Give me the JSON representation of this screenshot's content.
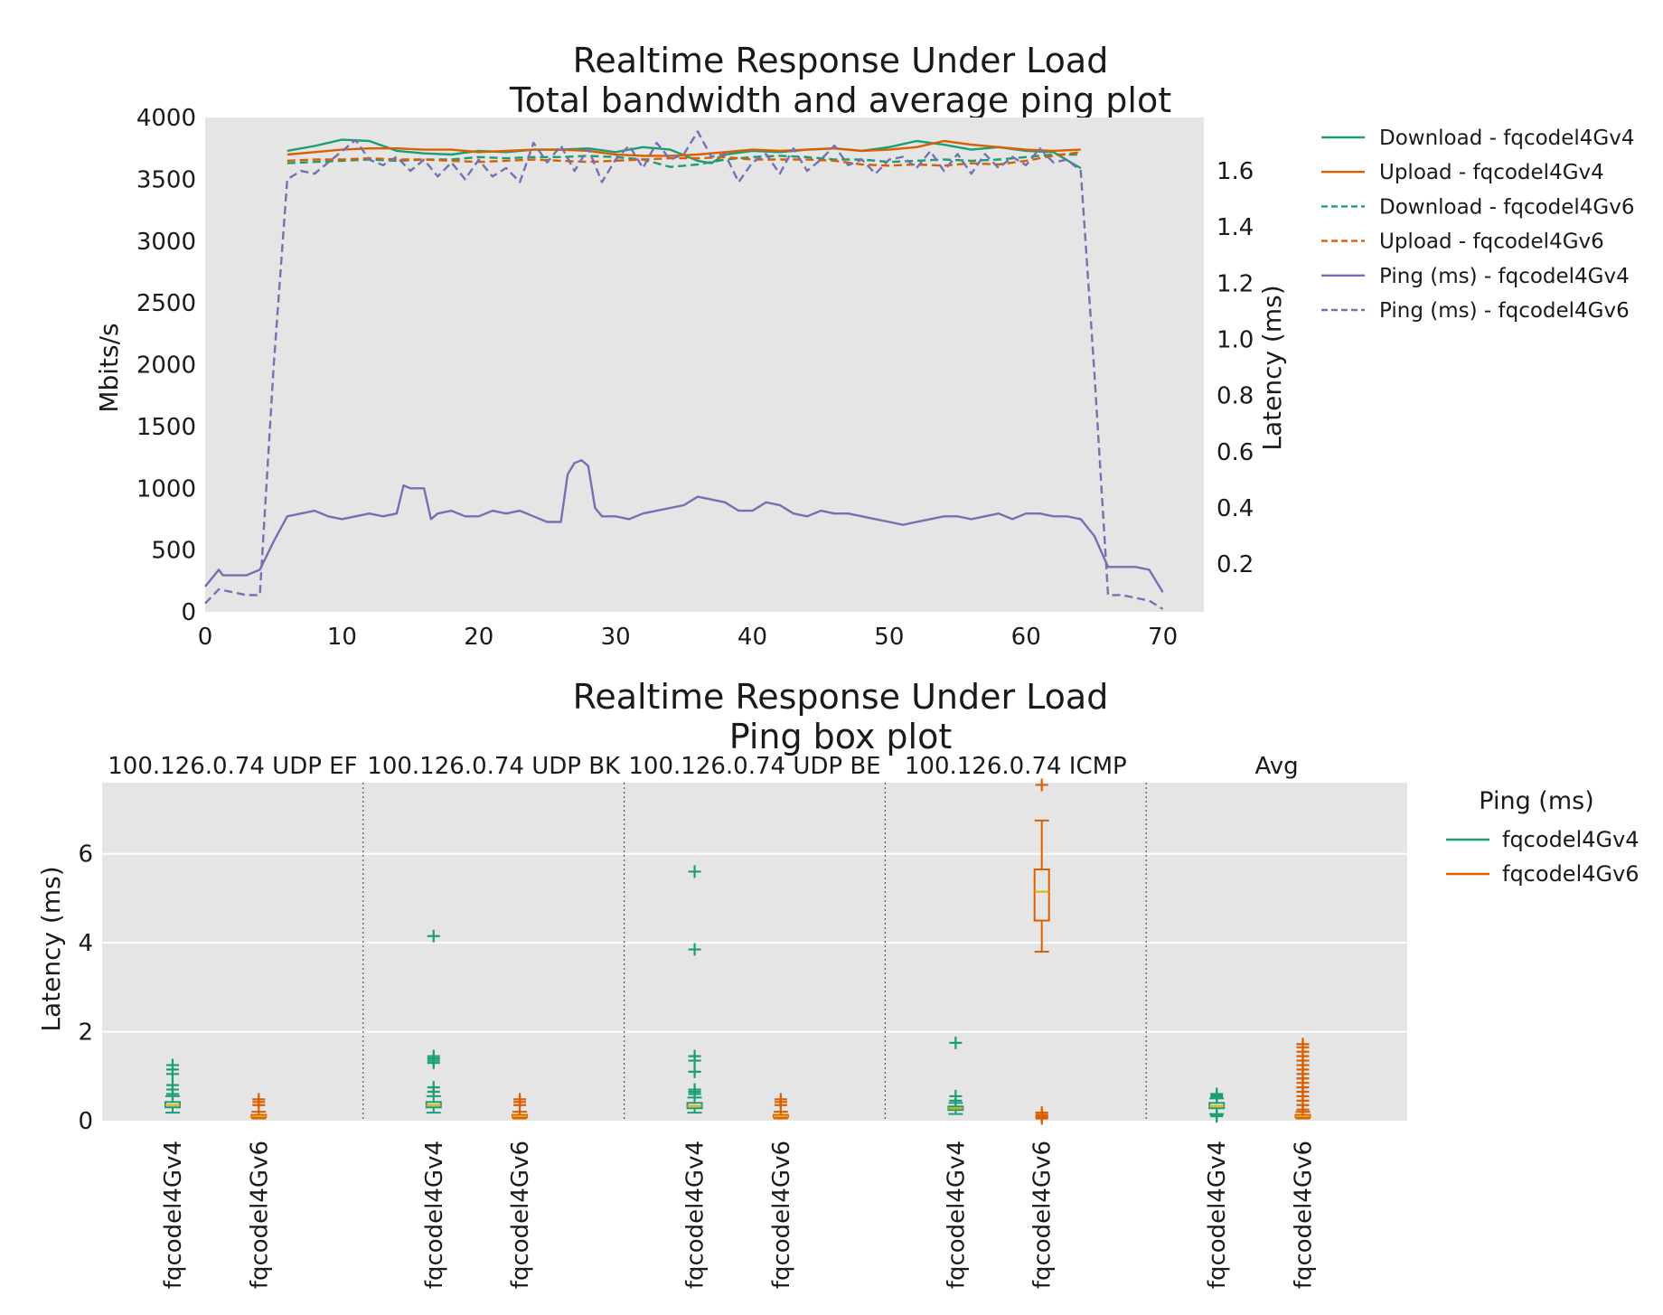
{
  "chart_data": [
    {
      "type": "line",
      "title": "Realtime Response Under Load",
      "subtitle": "Total bandwidth and average ping plot",
      "xlabel": "",
      "ylabel": "Mbits/s",
      "y2label": "Latency (ms)",
      "xlim": [
        0,
        73
      ],
      "ylim": [
        0,
        4000
      ],
      "y2lim": [
        0.03,
        1.79
      ],
      "xticks": [
        "0",
        "10",
        "20",
        "30",
        "40",
        "50",
        "60",
        "70"
      ],
      "yticks": [
        "0",
        "500",
        "1000",
        "1500",
        "2000",
        "2500",
        "3000",
        "3500",
        "4000"
      ],
      "y2ticks": [
        "0.2",
        "0.4",
        "0.6",
        "0.8",
        "1.0",
        "1.2",
        "1.4",
        "1.6"
      ],
      "grid": false,
      "legend": "outside-right",
      "series": [
        {
          "name": "Download - fqcodel4Gv4",
          "axis": "left",
          "color": "#1b9e77",
          "dash": false,
          "x": [
            6,
            8,
            10,
            12,
            14,
            16,
            18,
            20,
            22,
            24,
            26,
            28,
            30,
            32,
            34,
            36,
            37,
            38,
            40,
            42,
            44,
            46,
            48,
            50,
            52,
            54,
            56,
            58,
            60,
            62,
            64
          ],
          "y": [
            3730,
            3770,
            3820,
            3810,
            3730,
            3710,
            3700,
            3730,
            3720,
            3740,
            3740,
            3750,
            3720,
            3760,
            3740,
            3650,
            3630,
            3700,
            3730,
            3720,
            3740,
            3750,
            3730,
            3760,
            3810,
            3780,
            3740,
            3760,
            3730,
            3720,
            3590
          ]
        },
        {
          "name": "Upload - fqcodel4Gv4",
          "axis": "left",
          "color": "#d95f02",
          "dash": false,
          "x": [
            6,
            8,
            10,
            12,
            14,
            16,
            18,
            20,
            22,
            24,
            26,
            28,
            30,
            32,
            34,
            36,
            38,
            40,
            42,
            44,
            46,
            48,
            50,
            52,
            54,
            56,
            58,
            60,
            62,
            64
          ],
          "y": [
            3700,
            3720,
            3740,
            3750,
            3750,
            3740,
            3740,
            3720,
            3730,
            3740,
            3740,
            3730,
            3700,
            3690,
            3690,
            3700,
            3720,
            3740,
            3730,
            3740,
            3750,
            3730,
            3740,
            3760,
            3810,
            3780,
            3760,
            3740,
            3730,
            3740
          ]
        },
        {
          "name": "Download - fqcodel4Gv6",
          "axis": "left",
          "color": "#1b9e77",
          "dash": true,
          "x": [
            6,
            8,
            10,
            12,
            14,
            16,
            18,
            20,
            22,
            24,
            26,
            28,
            30,
            32,
            34,
            36,
            38,
            40,
            42,
            44,
            46,
            48,
            50,
            52,
            54,
            56,
            58,
            60,
            62,
            64
          ],
          "y": [
            3630,
            3640,
            3650,
            3660,
            3650,
            3660,
            3660,
            3680,
            3670,
            3680,
            3680,
            3690,
            3680,
            3660,
            3600,
            3620,
            3660,
            3680,
            3690,
            3680,
            3660,
            3660,
            3640,
            3650,
            3660,
            3650,
            3660,
            3680,
            3700,
            3700
          ]
        },
        {
          "name": "Upload - fqcodel4Gv6",
          "axis": "left",
          "color": "#d95f02",
          "dash": true,
          "x": [
            6,
            8,
            10,
            12,
            14,
            16,
            18,
            20,
            22,
            24,
            26,
            28,
            30,
            32,
            34,
            36,
            38,
            40,
            42,
            44,
            46,
            48,
            50,
            52,
            54,
            56,
            58,
            60,
            62,
            64
          ],
          "y": [
            3650,
            3660,
            3660,
            3670,
            3660,
            3660,
            3650,
            3640,
            3650,
            3660,
            3650,
            3640,
            3650,
            3660,
            3670,
            3670,
            3680,
            3660,
            3660,
            3660,
            3650,
            3620,
            3610,
            3620,
            3610,
            3630,
            3620,
            3650,
            3690,
            3720
          ]
        },
        {
          "name": "Ping (ms) - fqcodel4Gv4",
          "axis": "right",
          "color": "#7570b3",
          "dash": false,
          "x": [
            0,
            1,
            1.3,
            2,
            3,
            4,
            5,
            6,
            7,
            8,
            9,
            10,
            11,
            12,
            13,
            14,
            14.5,
            15,
            16,
            16.5,
            17,
            18,
            19,
            20,
            21,
            22,
            23,
            24,
            25,
            26,
            26.5,
            27,
            27.5,
            28,
            28.5,
            29,
            30,
            31,
            32,
            33,
            34,
            35,
            36,
            37,
            38,
            39,
            40,
            41,
            42,
            43,
            44,
            45,
            46,
            47,
            48,
            49,
            50,
            51,
            52,
            53,
            54,
            55,
            56,
            57,
            58,
            59,
            60,
            61,
            62,
            63,
            64,
            65,
            66,
            67,
            68,
            69,
            70
          ],
          "y": [
            0.12,
            0.18,
            0.16,
            0.16,
            0.16,
            0.18,
            0.28,
            0.37,
            0.38,
            0.39,
            0.37,
            0.36,
            0.37,
            0.38,
            0.37,
            0.38,
            0.48,
            0.47,
            0.47,
            0.36,
            0.38,
            0.39,
            0.37,
            0.37,
            0.39,
            0.38,
            0.39,
            0.37,
            0.35,
            0.35,
            0.52,
            0.56,
            0.57,
            0.55,
            0.4,
            0.37,
            0.37,
            0.36,
            0.38,
            0.39,
            0.4,
            0.41,
            0.44,
            0.43,
            0.42,
            0.39,
            0.39,
            0.42,
            0.41,
            0.38,
            0.37,
            0.39,
            0.38,
            0.38,
            0.37,
            0.36,
            0.35,
            0.34,
            0.35,
            0.36,
            0.37,
            0.37,
            0.36,
            0.37,
            0.38,
            0.36,
            0.38,
            0.38,
            0.37,
            0.37,
            0.36,
            0.3,
            0.19,
            0.19,
            0.19,
            0.18,
            0.1
          ]
        },
        {
          "name": "Ping (ms) - fqcodel4Gv6",
          "axis": "right",
          "color": "#7570b3",
          "dash": true,
          "x": [
            0,
            1,
            2,
            3,
            4,
            5,
            6,
            7,
            8,
            9,
            10,
            11,
            12,
            13,
            14,
            15,
            16,
            17,
            18,
            19,
            20,
            21,
            22,
            23,
            24,
            25,
            26,
            27,
            28,
            29,
            30,
            31,
            32,
            33,
            34,
            35,
            36,
            37,
            38,
            39,
            40,
            41,
            42,
            43,
            44,
            45,
            46,
            47,
            48,
            49,
            50,
            51,
            52,
            53,
            54,
            55,
            56,
            57,
            58,
            59,
            60,
            61,
            62,
            63,
            64,
            65,
            66,
            67,
            68,
            69,
            70
          ],
          "y": [
            0.06,
            0.11,
            0.1,
            0.09,
            0.09,
            0.9,
            1.57,
            1.6,
            1.59,
            1.63,
            1.67,
            1.71,
            1.64,
            1.62,
            1.65,
            1.6,
            1.64,
            1.58,
            1.63,
            1.57,
            1.64,
            1.58,
            1.61,
            1.56,
            1.7,
            1.63,
            1.69,
            1.6,
            1.68,
            1.56,
            1.64,
            1.69,
            1.61,
            1.7,
            1.64,
            1.66,
            1.74,
            1.65,
            1.66,
            1.56,
            1.63,
            1.66,
            1.59,
            1.68,
            1.6,
            1.64,
            1.69,
            1.62,
            1.64,
            1.59,
            1.64,
            1.65,
            1.61,
            1.67,
            1.6,
            1.66,
            1.59,
            1.66,
            1.61,
            1.65,
            1.62,
            1.68,
            1.63,
            1.64,
            1.6,
            0.88,
            0.09,
            0.09,
            0.08,
            0.07,
            0.04
          ]
        }
      ]
    },
    {
      "type": "box",
      "title": "Realtime Response Under Load",
      "subtitle": "Ping box plot",
      "ylabel": "Latency (ms)",
      "ylim": [
        0,
        7.6
      ],
      "yticks": [
        "0",
        "2",
        "4",
        "6"
      ],
      "legend_title": "Ping (ms)",
      "legend": [
        "fqcodel4Gv4",
        "fqcodel4Gv6"
      ],
      "colors": {
        "fqcodel4Gv4": "#1b9e77",
        "fqcodel4Gv6": "#d95f02"
      },
      "groups": [
        {
          "label": "100.126.0.74 UDP EF",
          "boxes": [
            {
              "label": "fqcodel4Gv4",
              "series": "fqcodel4Gv4",
              "min": 0.18,
              "q1": 0.3,
              "median": 0.35,
              "q3": 0.42,
              "max": 0.55,
              "fliers": [
                0.6,
                0.7,
                0.8,
                1.05,
                1.15,
                1.25
              ]
            },
            {
              "label": "fqcodel4Gv6",
              "series": "fqcodel4Gv6",
              "min": 0.05,
              "q1": 0.08,
              "median": 0.1,
              "q3": 0.13,
              "max": 0.2,
              "fliers": [
                0.35,
                0.42,
                0.48
              ]
            }
          ]
        },
        {
          "label": "100.126.0.74 UDP BK",
          "boxes": [
            {
              "label": "fqcodel4Gv4",
              "series": "fqcodel4Gv4",
              "min": 0.18,
              "q1": 0.3,
              "median": 0.35,
              "q3": 0.42,
              "max": 0.55,
              "fliers": [
                0.65,
                0.75,
                1.3,
                1.35,
                1.4,
                1.45,
                4.15
              ]
            },
            {
              "label": "fqcodel4Gv6",
              "series": "fqcodel4Gv6",
              "min": 0.05,
              "q1": 0.08,
              "median": 0.1,
              "q3": 0.13,
              "max": 0.2,
              "fliers": [
                0.35,
                0.42,
                0.48
              ]
            }
          ]
        },
        {
          "label": "100.126.0.74 UDP BE",
          "boxes": [
            {
              "label": "fqcodel4Gv4",
              "series": "fqcodel4Gv4",
              "min": 0.18,
              "q1": 0.28,
              "median": 0.33,
              "q3": 0.4,
              "max": 0.52,
              "fliers": [
                0.6,
                0.65,
                0.7,
                1.1,
                1.35,
                1.45,
                3.85,
                5.6
              ]
            },
            {
              "label": "fqcodel4Gv6",
              "series": "fqcodel4Gv6",
              "min": 0.05,
              "q1": 0.08,
              "median": 0.1,
              "q3": 0.13,
              "max": 0.2,
              "fliers": [
                0.35,
                0.42,
                0.48
              ]
            }
          ]
        },
        {
          "label": "100.126.0.74 ICMP",
          "boxes": [
            {
              "label": "fqcodel4Gv4",
              "series": "fqcodel4Gv4",
              "min": 0.15,
              "q1": 0.24,
              "median": 0.28,
              "q3": 0.32,
              "max": 0.4,
              "fliers": [
                0.45,
                0.55,
                1.75
              ]
            },
            {
              "label": "fqcodel4Gv6",
              "series": "fqcodel4Gv6",
              "min": 3.8,
              "q1": 4.5,
              "median": 5.15,
              "q3": 5.65,
              "max": 6.75,
              "fliers": [
                7.55,
                0.05,
                0.08,
                0.1,
                0.13,
                0.18
              ]
            }
          ]
        },
        {
          "label": "Avg",
          "boxes": [
            {
              "label": "fqcodel4Gv4",
              "series": "fqcodel4Gv4",
              "min": 0.15,
              "q1": 0.28,
              "median": 0.33,
              "q3": 0.4,
              "max": 0.5,
              "fliers": [
                0.1,
                0.12,
                0.52,
                0.56,
                0.6
              ]
            },
            {
              "label": "fqcodel4Gv6",
              "series": "fqcodel4Gv6",
              "min": 0.05,
              "q1": 0.08,
              "median": 0.1,
              "q3": 0.13,
              "max": 0.2,
              "fliers": [
                0.25,
                0.35,
                0.45,
                0.55,
                0.65,
                0.75,
                0.85,
                0.95,
                1.05,
                1.15,
                1.25,
                1.35,
                1.45,
                1.55,
                1.65,
                1.72
              ]
            }
          ]
        }
      ]
    }
  ]
}
